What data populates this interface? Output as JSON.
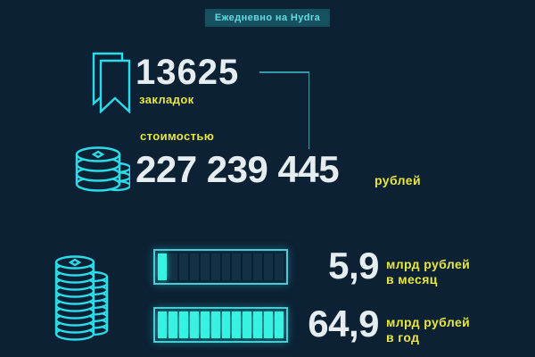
{
  "badge": {
    "label": "Ежедневно на Hydra"
  },
  "stats": {
    "bookmarks": {
      "value": "13625",
      "label": "закладок"
    },
    "cost": {
      "prefix": "стоимостью",
      "value": "227 239 445",
      "unit": "рублей"
    }
  },
  "bars": [
    {
      "value": "5,9",
      "unit_line1": "млрд рублей",
      "unit_line2": "в месяц",
      "segments": 12,
      "filled": 1
    },
    {
      "value": "64,9",
      "unit_line1": "млрд рублей",
      "unit_line2": "в год",
      "segments": 12,
      "filled": 12
    }
  ],
  "chart_data": {
    "type": "bar",
    "title": "Ежедневно на Hydra",
    "categories": [
      "в месяц",
      "в год"
    ],
    "values": [
      5.9,
      64.9
    ],
    "ylabel": "млрд рублей",
    "xlim": [
      0,
      64.9
    ],
    "annotations": [
      "13625 закладок",
      "стоимостью 227 239 445 рублей"
    ],
    "legend_position": "none",
    "grid": false
  },
  "icons": {
    "bookmark": "bookmark-icon",
    "coins": "coins-icon",
    "coin_stack": "coin-stack-icon"
  },
  "colors": {
    "background": "#0c2133",
    "cyan": "#2adbe8",
    "cyan_bright": "#38f2e2",
    "yellow": "#e9e63d",
    "white": "#e6edf1",
    "badge_bg": "#17505e",
    "badge_text": "#62dbe4",
    "connector": "#3899ab"
  }
}
